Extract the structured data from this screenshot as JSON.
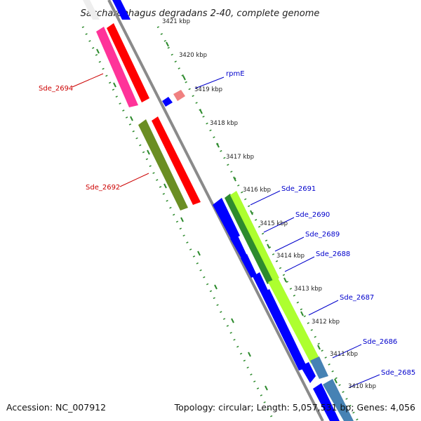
{
  "map": {
    "title": "Saccharophagus degradans 2-40, complete genome",
    "footer_left": "Accession: NC_007912",
    "footer_right": "Topology: circular; Length: 5,057,531 bp; Genes: 4,056",
    "colors": {
      "backbone": "#8a8a8a",
      "tick_dots": "#2e8b2e",
      "label_forward": "#cc0000",
      "label_reverse": "#0000cc",
      "red_cds": "#ff0000",
      "pink_cds": "#ff3399",
      "olive_cds": "#6b8e23",
      "blue_cds": "#0000ff",
      "green_cds": "#2e8b2e",
      "lime_cds": "#adff2f",
      "steel_cds": "#4682b4",
      "salmon_cds": "#f08080"
    },
    "ticks": [
      "3421 kbp",
      "3420 kbp",
      "3419 kbp",
      "3418 kbp",
      "3417 kbp",
      "3416 kbp",
      "3415 kbp",
      "3414 kbp",
      "3413 kbp",
      "3412 kbp",
      "3411 kbp",
      "3410 kbp"
    ],
    "forward_labels": [
      "Sde_2694",
      "Sde_2692"
    ],
    "reverse_labels": [
      "rpmE",
      "Sde_2691",
      "Sde_2690",
      "Sde_2689",
      "Sde_2688",
      "Sde_2687",
      "Sde_2686",
      "Sde_2685"
    ]
  }
}
